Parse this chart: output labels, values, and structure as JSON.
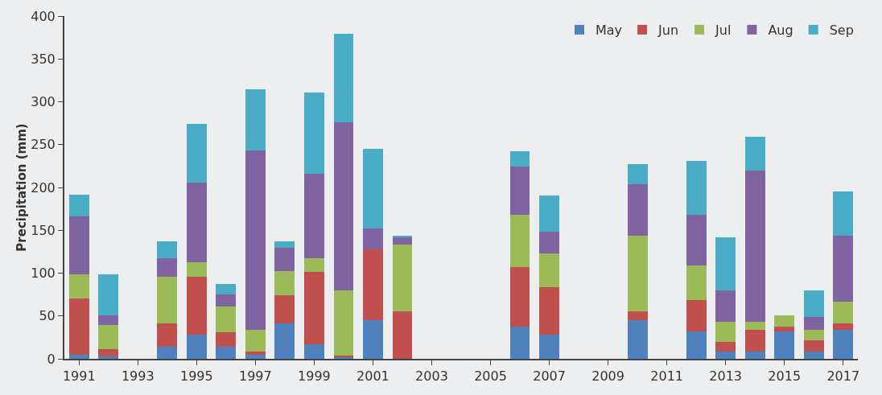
{
  "chart_data": {
    "type": "bar",
    "stacked": true,
    "ylabel": "Precipitation (mm)",
    "categories": [
      "1991",
      null,
      "1993",
      null,
      "1995",
      null,
      "1997",
      null,
      "1999",
      null,
      "2001",
      null,
      "2003",
      null,
      "2005",
      null,
      "2007",
      null,
      "2009",
      null,
      "2011",
      null,
      "2013",
      null,
      "2015",
      null,
      "2017"
    ],
    "series": [
      {
        "name": "May",
        "color": "#4f81bd",
        "values": [
          5,
          3,
          null,
          14,
          28,
          14,
          5,
          41,
          17,
          2,
          45,
          0,
          null,
          null,
          null,
          38,
          28,
          null,
          null,
          45,
          null,
          32,
          8,
          8,
          32,
          8,
          34
        ]
      },
      {
        "name": "Jun",
        "color": "#c0504d",
        "values": [
          65,
          8,
          null,
          27,
          68,
          17,
          3,
          33,
          84,
          2,
          83,
          55,
          null,
          null,
          null,
          69,
          56,
          null,
          null,
          10,
          null,
          37,
          12,
          26,
          6,
          14,
          7
        ]
      },
      {
        "name": "Jul",
        "color": "#9bbb59",
        "values": [
          29,
          28,
          null,
          55,
          17,
          30,
          26,
          28,
          16,
          76,
          0,
          78,
          null,
          null,
          null,
          61,
          39,
          null,
          null,
          89,
          null,
          40,
          23,
          9,
          13,
          12,
          26
        ]
      },
      {
        "name": "Aug",
        "color": "#8064a2",
        "values": [
          67,
          12,
          null,
          21,
          93,
          14,
          209,
          28,
          99,
          196,
          24,
          9,
          null,
          null,
          null,
          56,
          25,
          null,
          null,
          60,
          null,
          59,
          37,
          177,
          0,
          15,
          77
        ]
      },
      {
        "name": "Sep",
        "color": "#4bacc6",
        "values": [
          26,
          48,
          null,
          20,
          68,
          12,
          72,
          7,
          95,
          103,
          93,
          2,
          null,
          null,
          null,
          18,
          43,
          null,
          null,
          23,
          null,
          63,
          62,
          39,
          0,
          31,
          51
        ]
      }
    ],
    "ylim": [
      0,
      400
    ],
    "yticks": [
      0,
      50,
      100,
      150,
      200,
      250,
      300,
      350,
      400
    ],
    "grid": false,
    "legend": "top right"
  }
}
